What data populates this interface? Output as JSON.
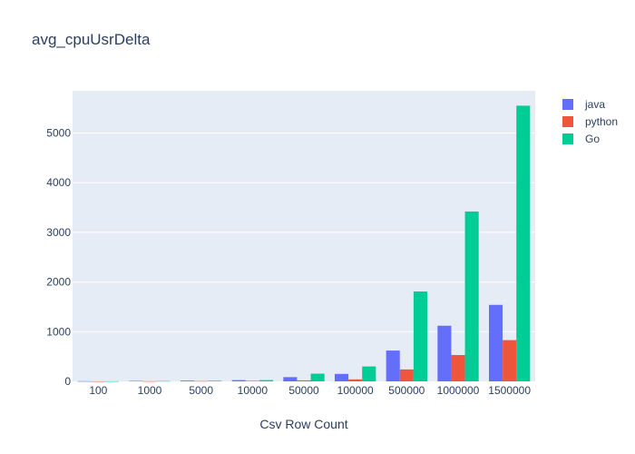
{
  "chart_data": {
    "type": "bar",
    "title": "avg_cpuUsrDelta",
    "xlabel": "Csv Row Count",
    "ylabel": "",
    "categories": [
      "100",
      "1000",
      "5000",
      "10000",
      "50000",
      "100000",
      "500000",
      "1000000",
      "1500000"
    ],
    "series": [
      {
        "name": "java",
        "color": "#636efa",
        "values": [
          3,
          8,
          15,
          25,
          85,
          150,
          620,
          1120,
          1540
        ]
      },
      {
        "name": "python",
        "color": "#ef553b",
        "values": [
          1,
          3,
          6,
          10,
          20,
          40,
          240,
          530,
          830
        ]
      },
      {
        "name": "Go",
        "color": "#00cc96",
        "values": [
          2,
          6,
          12,
          25,
          155,
          300,
          1810,
          3420,
          5550
        ]
      }
    ],
    "ylim": [
      0,
      5850
    ],
    "yticks": [
      0,
      1000,
      2000,
      3000,
      4000,
      5000
    ],
    "legend_position": "top-right",
    "grid": true
  }
}
